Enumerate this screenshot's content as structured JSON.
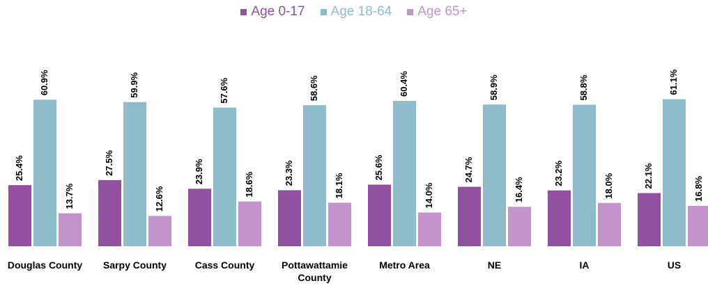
{
  "chart_data": {
    "type": "bar",
    "categories": [
      "Douglas County",
      "Sarpy County",
      "Cass County",
      "Pottawattamie County",
      "Metro Area",
      "NE",
      "IA",
      "US"
    ],
    "series": [
      {
        "name": "Age 0-17",
        "color": "#9150a0",
        "values": [
          25.4,
          27.5,
          23.9,
          23.3,
          25.6,
          24.7,
          23.2,
          22.1
        ],
        "value_labels": [
          "25.4%",
          "27.5%",
          "23.9%",
          "23.3%",
          "25.6%",
          "24.7%",
          "23.2%",
          "22.1%"
        ]
      },
      {
        "name": "Age 18-64",
        "color": "#8fbccb",
        "values": [
          60.9,
          59.9,
          57.6,
          58.6,
          60.4,
          58.9,
          58.8,
          61.1
        ],
        "value_labels": [
          "60.9%",
          "59.9%",
          "57.6%",
          "58.6%",
          "60.4%",
          "58.9%",
          "58.8%",
          "61.1%"
        ]
      },
      {
        "name": "Age 65+",
        "color": "#c393cb",
        "values": [
          13.7,
          12.6,
          18.6,
          18.1,
          14.0,
          16.4,
          18.0,
          16.8
        ],
        "value_labels": [
          "13.7%",
          "12.6%",
          "18.6%",
          "18.1%",
          "14.0%",
          "16.4%",
          "18.0%",
          "16.8%"
        ]
      }
    ],
    "legend": "top"
  }
}
